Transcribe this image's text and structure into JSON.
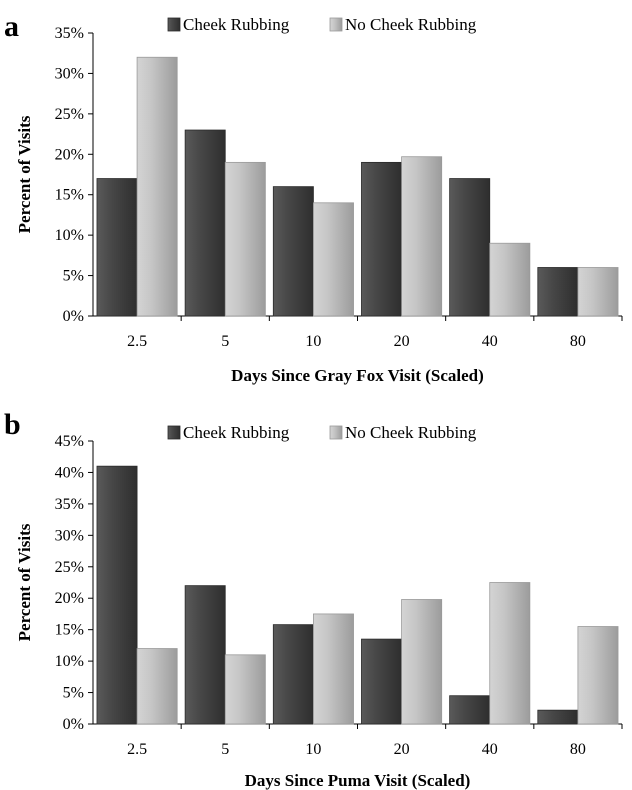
{
  "chart_data": [
    {
      "type": "bar",
      "panel_label": "a",
      "title": "",
      "xlabel": "Days Since Gray Fox Visit (Scaled)",
      "ylabel": "Percent of Visits",
      "categories": [
        "2.5",
        "5",
        "10",
        "20",
        "40",
        "80"
      ],
      "ylim": [
        0,
        35
      ],
      "yticks": [
        "0%",
        "5%",
        "10%",
        "15%",
        "20%",
        "25%",
        "30%",
        "35%"
      ],
      "legend_position": "top",
      "grid": false,
      "series": [
        {
          "name": "Cheek Rubbing",
          "color": "#4a4a4a",
          "values": [
            17,
            23,
            16,
            19,
            17,
            6
          ]
        },
        {
          "name": "No Cheek Rubbing",
          "color": "#c8c8c8",
          "values": [
            32,
            19,
            14,
            19.7,
            9,
            6
          ]
        }
      ]
    },
    {
      "type": "bar",
      "panel_label": "b",
      "title": "",
      "xlabel": "Days Since Puma Visit (Scaled)",
      "ylabel": "Percent of Visits",
      "categories": [
        "2.5",
        "5",
        "10",
        "20",
        "40",
        "80"
      ],
      "ylim": [
        0,
        45
      ],
      "yticks": [
        "0%",
        "5%",
        "10%",
        "15%",
        "20%",
        "25%",
        "30%",
        "35%",
        "40%",
        "45%"
      ],
      "legend_position": "top",
      "grid": false,
      "series": [
        {
          "name": "Cheek Rubbing",
          "color": "#4a4a4a",
          "values": [
            41,
            22,
            15.8,
            13.5,
            4.5,
            2.2
          ]
        },
        {
          "name": "No Cheek Rubbing",
          "color": "#c8c8c8",
          "values": [
            12,
            11,
            17.5,
            19.8,
            22.5,
            15.5
          ]
        }
      ]
    }
  ]
}
